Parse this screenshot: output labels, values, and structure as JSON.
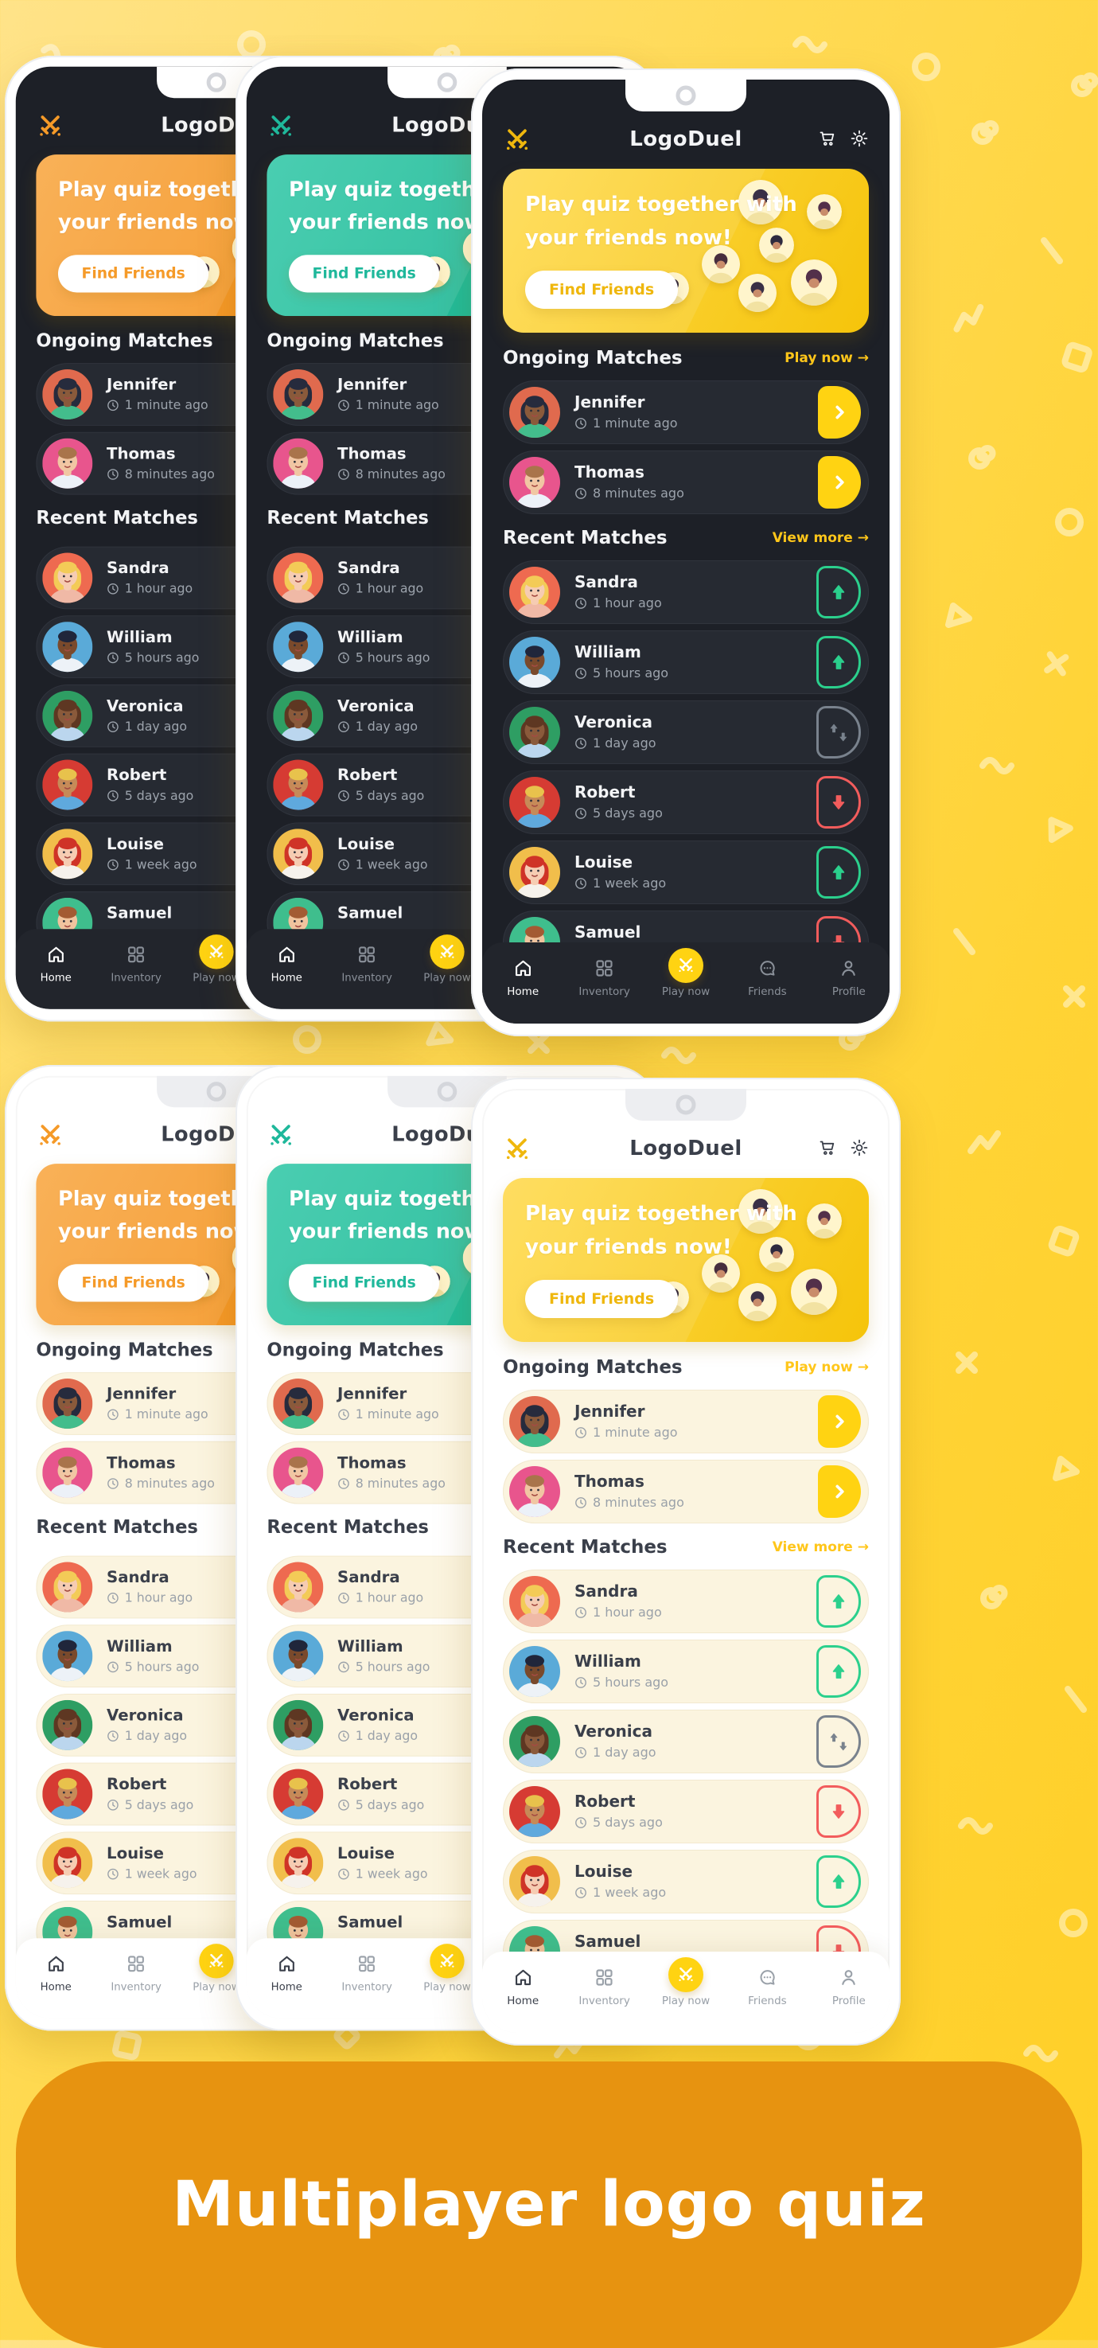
{
  "app": {
    "title": "LogoDuel",
    "promo": {
      "line1": "Play quiz together with",
      "line2": "your friends now!",
      "cta": "Find Friends"
    },
    "ongoing": {
      "heading": "Ongoing Matches",
      "action": "Play now →",
      "matches": [
        {
          "name": "Jennifer",
          "time": "1 minute ago"
        },
        {
          "name": "Thomas",
          "time": "8 minutes ago"
        }
      ]
    },
    "recent": {
      "heading": "Recent Matches",
      "action": "View more →",
      "matches": [
        {
          "name": "Sandra",
          "time": "1 hour ago",
          "result": "win"
        },
        {
          "name": "William",
          "time": "5 hours ago",
          "result": "win"
        },
        {
          "name": "Veronica",
          "time": "1 day ago",
          "result": "draw"
        },
        {
          "name": "Robert",
          "time": "5 days ago",
          "result": "loss"
        },
        {
          "name": "Louise",
          "time": "1 week ago",
          "result": "win"
        },
        {
          "name": "Samuel",
          "time": "",
          "result": "loss"
        }
      ]
    },
    "nav": [
      {
        "label": "Home",
        "icon": "home-icon",
        "active": true
      },
      {
        "label": "Inventory",
        "icon": "inventory-icon"
      },
      {
        "label": "Play now",
        "icon": "crossed-swords-icon",
        "highlight": true
      },
      {
        "label": "Friends",
        "icon": "friends-chat-icon"
      },
      {
        "label": "Profile",
        "icon": "profile-icon"
      }
    ]
  },
  "footer": {
    "title": "Multiplayer logo quiz"
  },
  "colors": {
    "page_yellow": "#FFD43B",
    "link_yellow": "#FFC61A",
    "play_button_yellow": "#FFD312",
    "win_green": "#2BD08D",
    "loss_red": "#F25C5C",
    "draw_gray": "#79828D",
    "banner_orange": "#E79310",
    "accents": {
      "yellow": {
        "g1": "#FFDA4F",
        "g2": "#F5C40A",
        "text": "#EFB70D"
      },
      "orange": {
        "g1": "#F9A845",
        "g2": "#F28D13",
        "text": "#F59A28"
      },
      "teal": {
        "g1": "#36C9A8",
        "g2": "#12B290",
        "text": "#1FB89B"
      }
    }
  },
  "avatars": {
    "Jennifer": {
      "bg": "#E06A4E",
      "skin": "#8A5A3B",
      "hair": "#262B3D",
      "shirt": "#43BD8C",
      "style": "long"
    },
    "Thomas": {
      "bg": "#E8558D",
      "skin": "#F1C6A3",
      "hair": "#A9744B",
      "shirt": "#ECF1F8",
      "style": "short"
    },
    "Sandra": {
      "bg": "#EE6A50",
      "skin": "#F6CCB2",
      "hair": "#F3CB57",
      "shirt": "#F0B9A6",
      "style": "long"
    },
    "William": {
      "bg": "#5AAAD8",
      "skin": "#7A4A2C",
      "hair": "#20263B",
      "shirt": "#EDF2F7",
      "style": "short"
    },
    "Veronica": {
      "bg": "#2E9E63",
      "skin": "#8A5A3B",
      "hair": "#5E3722",
      "shirt": "#BBD6EE",
      "style": "long"
    },
    "Robert": {
      "bg": "#D63B33",
      "skin": "#C68A58",
      "hair": "#E8C24C",
      "shirt": "#5FA9DD",
      "style": "short"
    },
    "Louise": {
      "bg": "#F1BE4B",
      "skin": "#F6CCB2",
      "hair": "#CF3327",
      "shirt": "#F6F2EC",
      "style": "long"
    },
    "Samuel": {
      "bg": "#3FBE8D",
      "skin": "#F0C49E",
      "hair": "#A35B33",
      "shirt": "#3C4252",
      "style": "short"
    }
  },
  "mini_avatar_heads": [
    "#3A3046",
    "#53304A",
    "#2E2A3E",
    "#472E3E",
    "#33283C"
  ]
}
